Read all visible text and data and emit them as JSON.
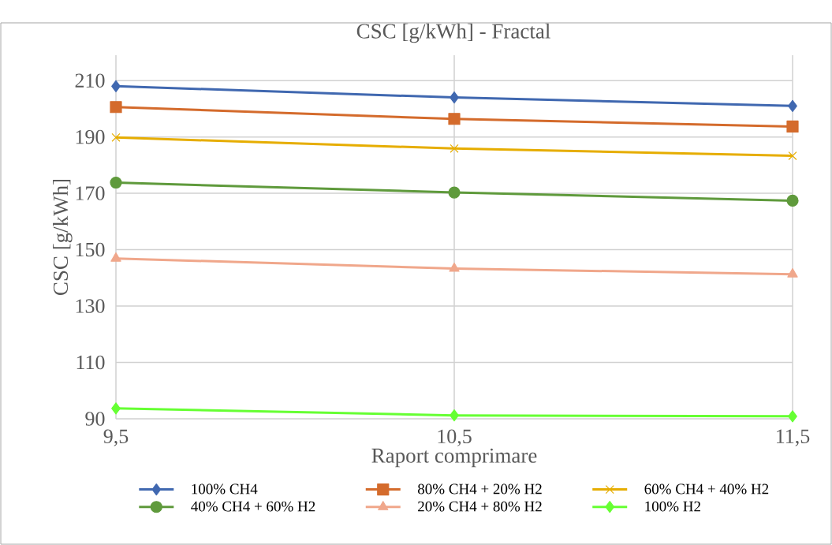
{
  "chart_data": {
    "type": "line",
    "title": "CSC [g/kWh] - Fractal",
    "xlabel": "Raport comprimare",
    "ylabel": "CSC [g/kWh]",
    "categories": [
      "9,5",
      "10,5",
      "11,5"
    ],
    "ylim": [
      90,
      219
    ],
    "yticks": [
      90,
      110,
      130,
      150,
      170,
      190,
      210
    ],
    "grid": true,
    "legend": "bottom",
    "line_style": "solid",
    "series": [
      {
        "name": "100% CH4",
        "color": "#4068b0",
        "marker": "diamond",
        "values": [
          208,
          204,
          201
        ]
      },
      {
        "name": "80% CH4 + 20% H2",
        "color": "#d46b2c",
        "marker": "square",
        "values": [
          200.6,
          196.4,
          193.7
        ]
      },
      {
        "name": "60% CH4 + 40% H2",
        "color": "#e6ad00",
        "marker": "cross",
        "values": [
          189.8,
          185.9,
          183.3
        ]
      },
      {
        "name": "40% CH4 + 60% H2",
        "color": "#5f9a3c",
        "marker": "circle",
        "values": [
          173.8,
          170.3,
          167.4
        ]
      },
      {
        "name": "20% CH4 + 80% H2",
        "color": "#f0a78b",
        "marker": "triangle",
        "values": [
          146.9,
          143.3,
          141.3
        ]
      },
      {
        "name": "100% H2",
        "color": "#66ff33",
        "marker": "diamond",
        "values": [
          93.7,
          91.2,
          90.9
        ]
      }
    ]
  }
}
